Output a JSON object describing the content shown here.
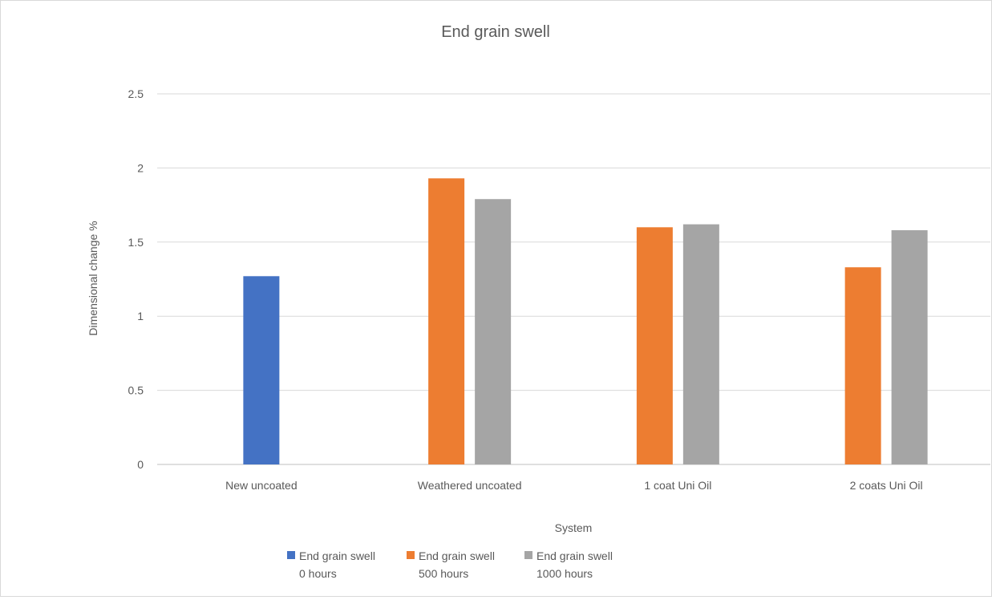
{
  "chart_data": {
    "type": "bar",
    "title": "End grain swell",
    "xlabel": "System",
    "ylabel": "Dimensional change %",
    "categories": [
      "New uncoated",
      "Weathered uncoated",
      "1 coat Uni Oil",
      "2 coats Uni Oil"
    ],
    "series": [
      {
        "name": "End grain swell 0 hours",
        "legend_lines": [
          "End grain swell",
          "0 hours"
        ],
        "color": "#4472c4",
        "values": [
          1.27,
          null,
          null,
          null
        ]
      },
      {
        "name": "End grain swell 500 hours",
        "legend_lines": [
          "End grain swell",
          "500 hours"
        ],
        "color": "#ed7d31",
        "values": [
          null,
          1.93,
          1.6,
          1.33
        ]
      },
      {
        "name": "End grain swell 1000 hours",
        "legend_lines": [
          "End grain swell",
          "1000 hours"
        ],
        "color": "#a5a5a5",
        "values": [
          null,
          1.79,
          1.62,
          1.58
        ]
      }
    ],
    "yticks": [
      "0",
      "0.5",
      "1",
      "1.5",
      "2",
      "2.5"
    ],
    "ylim": [
      0,
      2.5
    ],
    "grid": true,
    "legend_position": "bottom"
  }
}
